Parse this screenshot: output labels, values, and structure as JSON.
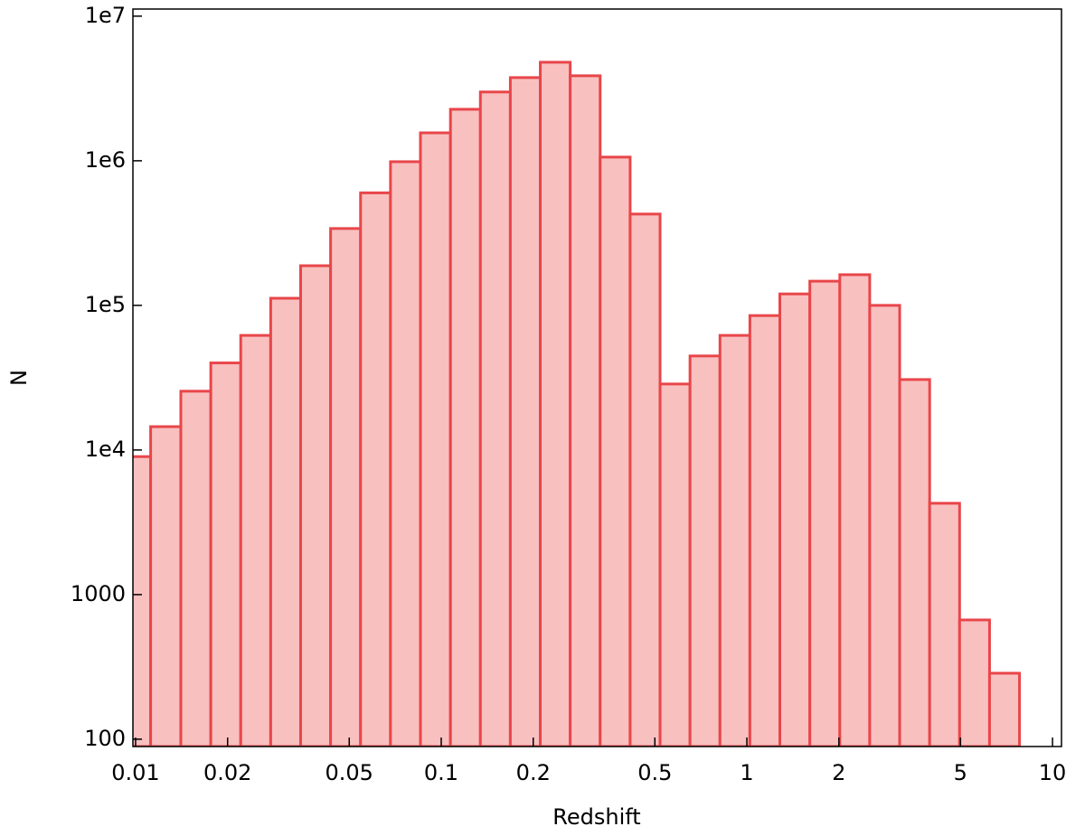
{
  "chart_data": {
    "type": "histogram",
    "xlabel": "Redshift",
    "ylabel": "N",
    "xscale": "log",
    "yscale": "log",
    "bins": [
      0.00896,
      0.0112,
      0.01406,
      0.01762,
      0.02208,
      0.02767,
      0.03467,
      0.04345,
      0.05445,
      0.06823,
      0.0855,
      0.1072,
      0.1343,
      0.1683,
      0.2109,
      0.2642,
      0.3311,
      0.415,
      0.52,
      0.6516,
      0.8166,
      1.023,
      1.282,
      1.607,
      2.014,
      2.523,
      3.162,
      3.963,
      4.966,
      6.223,
      7.798
    ],
    "counts": [
      9000,
      14500,
      25500,
      40000,
      62000,
      112000,
      188000,
      340000,
      600000,
      985000,
      1560000,
      2270000,
      2990000,
      3760000,
      4800000,
      3870000,
      1060000,
      428000,
      28600,
      44700,
      62000,
      85000,
      120000,
      147000,
      163000,
      100000,
      30700,
      4280,
      668,
      286
    ],
    "color": "#f9c0c0",
    "edgecolor": "#e8464a",
    "xlim": [
      0.0098,
      10.7
    ],
    "ylim": [
      89,
      11200000
    ],
    "xticks": [
      0.01,
      0.02,
      0.05,
      0.1,
      0.2,
      0.5,
      1,
      2,
      5,
      10
    ],
    "yticks": [
      100,
      1000,
      {
        "value": 10000,
        "label": "1e4"
      },
      {
        "value": 100000,
        "label": "1e5"
      },
      {
        "value": 1000000,
        "label": "1e6"
      },
      {
        "value": 10000000,
        "label": "1e7"
      }
    ]
  }
}
